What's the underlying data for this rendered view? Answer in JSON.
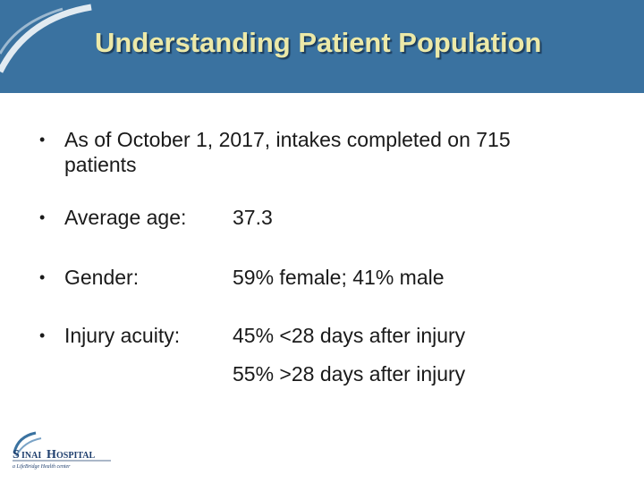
{
  "slide": {
    "title": "Understanding Patient Population",
    "accent_color": "#3a72a0",
    "title_color": "#ece9a8"
  },
  "bullets": [
    {
      "text": "As of October 1, 2017, intakes completed on 715",
      "continuation": "patients"
    },
    {
      "label": "Average age:",
      "value": "37.3"
    },
    {
      "label": "Gender:",
      "value": "59% female; 41% male"
    },
    {
      "label": "Injury acuity:",
      "value": "45% <28 days after injury",
      "value2": "55%  >28 days after injury"
    }
  ],
  "logo": {
    "name": "SINAI HOSPITAL",
    "tagline": "a LifeBridge Health center"
  }
}
